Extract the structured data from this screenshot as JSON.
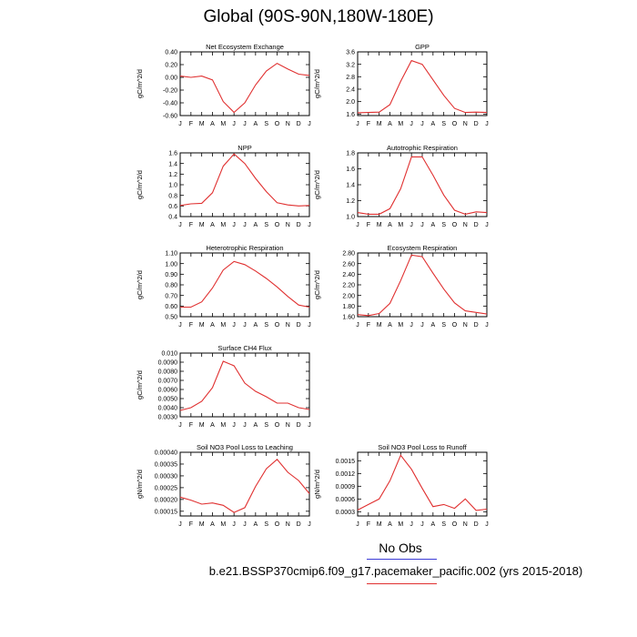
{
  "figure": {
    "title": "Global (90S-90N,180W-180E)",
    "legend": {
      "obs_label": "No Obs",
      "obs_color": "#3b3bd6",
      "case_label": "b.e21.BSSP370cmip6.f09_g17.pacemaker_pacific.002 (yrs 2015-2018)",
      "case_color": "#e03030"
    }
  },
  "chart_data": [
    {
      "type": "line",
      "title": "Net Ecosystem Exchange",
      "ylabel": "gC/m^2/d",
      "x": [
        "J",
        "F",
        "M",
        "A",
        "M",
        "J",
        "J",
        "A",
        "S",
        "O",
        "N",
        "D",
        "J"
      ],
      "ylim": [
        -0.6,
        0.4
      ],
      "yticks": [
        -0.6,
        -0.4,
        -0.2,
        0.0,
        0.2,
        0.4
      ],
      "ytick_labels": [
        "-0.60",
        "-0.40",
        "-0.20",
        "0.00",
        "0.20",
        "0.40"
      ],
      "series": [
        {
          "color": "#e03030",
          "values": [
            0.02,
            0.0,
            0.02,
            -0.04,
            -0.38,
            -0.55,
            -0.4,
            -0.12,
            0.1,
            0.22,
            0.13,
            0.05,
            0.03
          ]
        }
      ]
    },
    {
      "type": "line",
      "title": "GPP",
      "ylabel": "gC/m^2/d",
      "x": [
        "J",
        "F",
        "M",
        "A",
        "M",
        "J",
        "J",
        "A",
        "S",
        "O",
        "N",
        "D",
        "J"
      ],
      "ylim": [
        1.55,
        3.6
      ],
      "yticks": [
        1.6,
        2.0,
        2.4,
        2.8,
        3.2,
        3.6
      ],
      "ytick_labels": [
        "1.6",
        "2.0",
        "2.4",
        "2.8",
        "3.2",
        "3.6"
      ],
      "series": [
        {
          "color": "#e03030",
          "values": [
            1.64,
            1.65,
            1.66,
            1.9,
            2.65,
            3.32,
            3.2,
            2.7,
            2.2,
            1.78,
            1.65,
            1.66,
            1.65
          ]
        }
      ]
    },
    {
      "type": "line",
      "title": "NPP",
      "ylabel": "gC/m^2/d",
      "x": [
        "J",
        "F",
        "M",
        "A",
        "M",
        "J",
        "J",
        "A",
        "S",
        "O",
        "N",
        "D",
        "J"
      ],
      "ylim": [
        0.4,
        1.6
      ],
      "yticks": [
        0.4,
        0.6,
        0.8,
        1.0,
        1.2,
        1.4,
        1.6
      ],
      "ytick_labels": [
        "0.4",
        "0.6",
        "0.8",
        "1.0",
        "1.2",
        "1.4",
        "1.6"
      ],
      "series": [
        {
          "color": "#e03030",
          "values": [
            0.61,
            0.64,
            0.65,
            0.85,
            1.35,
            1.58,
            1.4,
            1.12,
            0.87,
            0.66,
            0.62,
            0.6,
            0.61
          ]
        }
      ]
    },
    {
      "type": "line",
      "title": "Autotrophic Respiration",
      "ylabel": "gC/m^2/d",
      "x": [
        "J",
        "F",
        "M",
        "A",
        "M",
        "J",
        "J",
        "A",
        "S",
        "O",
        "N",
        "D",
        "J"
      ],
      "ylim": [
        1.0,
        1.8
      ],
      "yticks": [
        1.0,
        1.2,
        1.4,
        1.6,
        1.8
      ],
      "ytick_labels": [
        "1.0",
        "1.2",
        "1.4",
        "1.6",
        "1.8"
      ],
      "series": [
        {
          "color": "#e03030",
          "values": [
            1.05,
            1.03,
            1.03,
            1.1,
            1.35,
            1.75,
            1.75,
            1.52,
            1.27,
            1.08,
            1.03,
            1.06,
            1.05
          ]
        }
      ]
    },
    {
      "type": "line",
      "title": "Heterotrophic Respiration",
      "ylabel": "gC/m^2/d",
      "x": [
        "J",
        "F",
        "M",
        "A",
        "M",
        "J",
        "J",
        "A",
        "S",
        "O",
        "N",
        "D",
        "J"
      ],
      "ylim": [
        0.5,
        1.1
      ],
      "yticks": [
        0.5,
        0.6,
        0.7,
        0.8,
        0.9,
        1.0,
        1.1
      ],
      "ytick_labels": [
        "0.50",
        "0.60",
        "0.70",
        "0.80",
        "0.90",
        "1.00",
        "1.10"
      ],
      "series": [
        {
          "color": "#e03030",
          "values": [
            0.59,
            0.59,
            0.64,
            0.77,
            0.94,
            1.02,
            0.99,
            0.93,
            0.86,
            0.78,
            0.69,
            0.61,
            0.59
          ]
        }
      ]
    },
    {
      "type": "line",
      "title": "Ecosystem Respiration",
      "ylabel": "gC/m^2/d",
      "x": [
        "J",
        "F",
        "M",
        "A",
        "M",
        "J",
        "J",
        "A",
        "S",
        "O",
        "N",
        "D",
        "J"
      ],
      "ylim": [
        1.6,
        2.8
      ],
      "yticks": [
        1.6,
        1.8,
        2.0,
        2.2,
        2.4,
        2.6,
        2.8
      ],
      "ytick_labels": [
        "1.60",
        "1.80",
        "2.00",
        "2.20",
        "2.40",
        "2.60",
        "2.80"
      ],
      "series": [
        {
          "color": "#e03030",
          "values": [
            1.64,
            1.62,
            1.66,
            1.85,
            2.28,
            2.76,
            2.73,
            2.42,
            2.12,
            1.86,
            1.71,
            1.68,
            1.65
          ]
        }
      ]
    },
    {
      "type": "line",
      "title": "Surface CH4 Flux",
      "ylabel": "gC/m^2/d",
      "x": [
        "J",
        "F",
        "M",
        "A",
        "M",
        "J",
        "J",
        "A",
        "S",
        "O",
        "N",
        "D",
        "J"
      ],
      "ylim": [
        0.003,
        0.01
      ],
      "yticks": [
        0.003,
        0.004,
        0.005,
        0.006,
        0.007,
        0.008,
        0.009,
        0.01
      ],
      "ytick_labels": [
        "0.0030",
        "0.0040",
        "0.0050",
        "0.0060",
        "0.0070",
        "0.0080",
        "0.0090",
        "0.010"
      ],
      "series": [
        {
          "color": "#e03030",
          "values": [
            0.0037,
            0.004,
            0.0047,
            0.0062,
            0.0091,
            0.0086,
            0.0067,
            0.0058,
            0.0052,
            0.0045,
            0.0045,
            0.004,
            0.0038
          ]
        }
      ]
    },
    {
      "type": "line",
      "title": "Soil NO3 Pool Loss to Leaching",
      "ylabel": "gN/m^2/d",
      "x": [
        "J",
        "F",
        "M",
        "A",
        "M",
        "J",
        "J",
        "A",
        "S",
        "O",
        "N",
        "D",
        "J"
      ],
      "ylim": [
        0.00013,
        0.0004
      ],
      "yticks": [
        0.00015,
        0.0002,
        0.00025,
        0.0003,
        0.00035,
        0.0004
      ],
      "ytick_labels": [
        "0.00015",
        "0.00020",
        "0.00025",
        "0.00030",
        "0.00035",
        "0.00040"
      ],
      "series": [
        {
          "color": "#e03030",
          "values": [
            0.00021,
            0.000197,
            0.00018,
            0.000185,
            0.000175,
            0.000145,
            0.000165,
            0.000255,
            0.00033,
            0.00037,
            0.000315,
            0.00028,
            0.000225
          ]
        }
      ]
    },
    {
      "type": "line",
      "title": "Soil NO3 Pool Loss to Runoff",
      "ylabel": "gN/m^2/d",
      "x": [
        "J",
        "F",
        "M",
        "A",
        "M",
        "J",
        "J",
        "A",
        "S",
        "O",
        "N",
        "D",
        "J"
      ],
      "ylim": [
        0.0002,
        0.0017
      ],
      "yticks": [
        0.0003,
        0.0006,
        0.0009,
        0.0012,
        0.0015
      ],
      "ytick_labels": [
        "0.0003",
        "0.0006",
        "0.0009",
        "0.0012",
        "0.0015"
      ],
      "series": [
        {
          "color": "#e03030",
          "values": [
            0.00034,
            0.00047,
            0.0006,
            0.00103,
            0.00163,
            0.0013,
            0.00085,
            0.00042,
            0.00047,
            0.00038,
            0.0006,
            0.00033,
            0.00036
          ]
        }
      ]
    }
  ]
}
